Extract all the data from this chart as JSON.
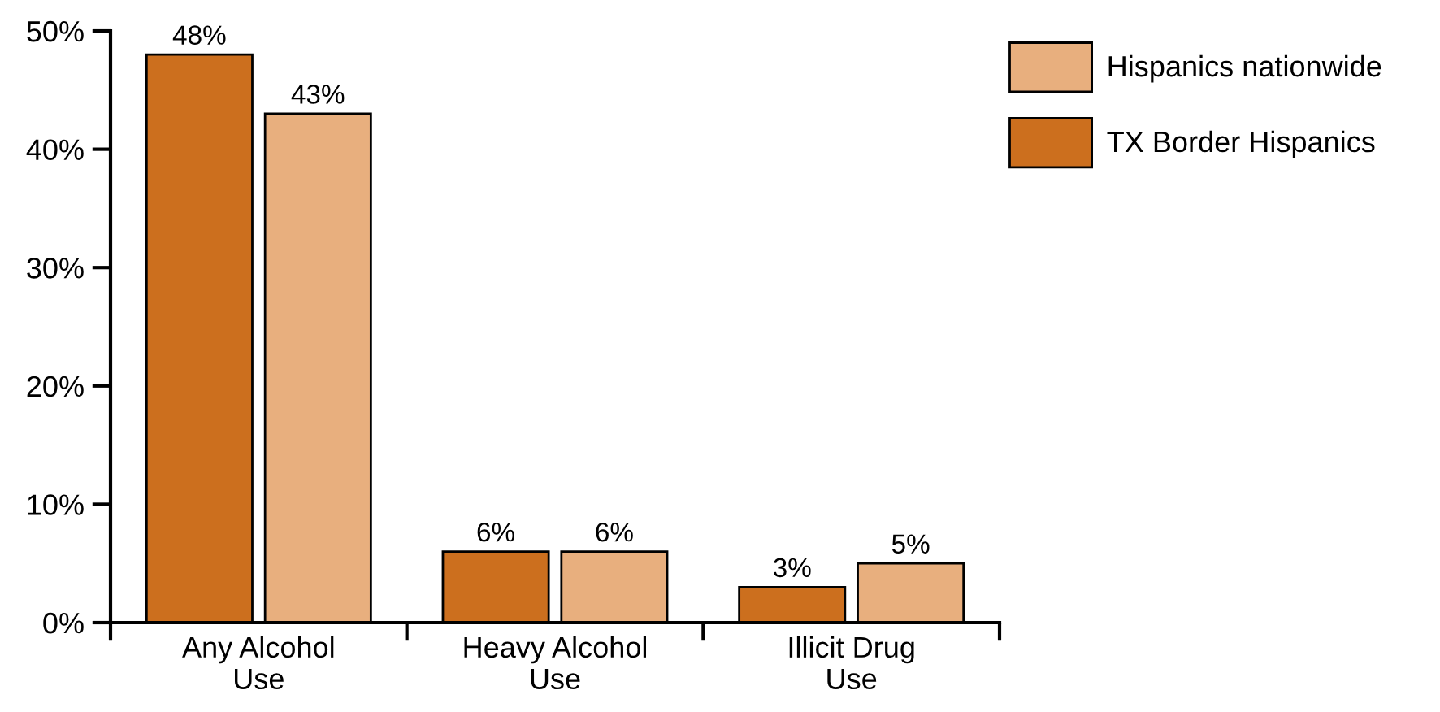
{
  "chart_data": {
    "type": "bar",
    "categories": [
      "Any Alcohol\nUse",
      "Heavy Alcohol\nUse",
      "Illicit Drug\nUse"
    ],
    "series": [
      {
        "name": "TX Border Hispanics",
        "color": "#cc6f1e",
        "values": [
          48,
          6,
          3
        ],
        "value_labels": [
          "48%",
          "6%",
          "3%"
        ]
      },
      {
        "name": "Hispanics nationwide",
        "color": "#e8af7e",
        "values": [
          43,
          6,
          5
        ],
        "value_labels": [
          "43%",
          "6%",
          "5%"
        ]
      }
    ],
    "ylim": [
      0,
      50
    ],
    "yticks": [
      {
        "value": 0,
        "label": "0%"
      },
      {
        "value": 10,
        "label": "10%"
      },
      {
        "value": 20,
        "label": "20%"
      },
      {
        "value": 30,
        "label": "30%"
      },
      {
        "value": 40,
        "label": "40%"
      },
      {
        "value": 50,
        "label": "50%"
      }
    ],
    "grid": false,
    "legend": "top right"
  }
}
